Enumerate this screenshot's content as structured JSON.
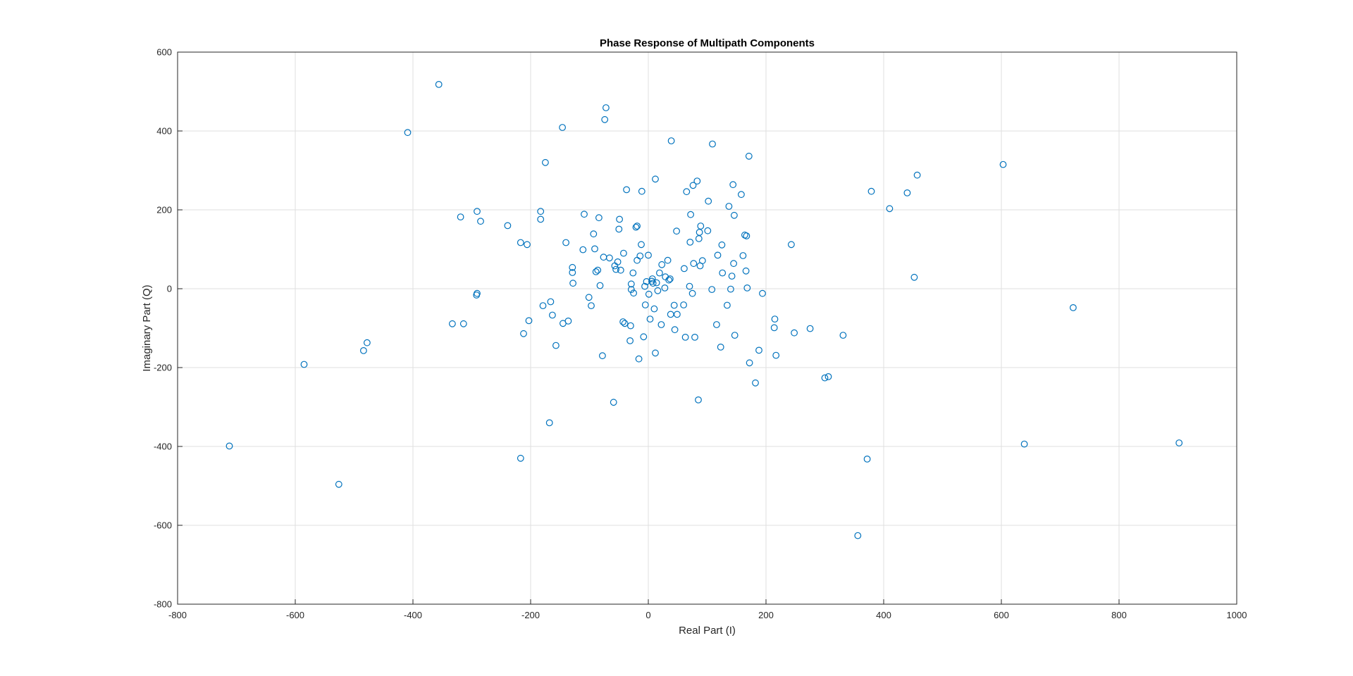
{
  "chart_data": {
    "type": "scatter",
    "title": "Phase Response of Multipath Components",
    "xlabel": "Real Part (I)",
    "ylabel": "Imaginary Part (Q)",
    "xlim": [
      -800,
      1000
    ],
    "ylim": [
      -800,
      600
    ],
    "xticks": [
      -800,
      -600,
      -400,
      -200,
      0,
      200,
      400,
      600,
      800,
      1000
    ],
    "yticks": [
      -800,
      -600,
      -400,
      -200,
      0,
      200,
      400,
      600
    ],
    "grid": true,
    "marker": "open-circle",
    "color": "#0072bd",
    "points": [
      [
        -712,
        -399
      ],
      [
        -585,
        -192
      ],
      [
        -526,
        -496
      ],
      [
        -484,
        -157
      ],
      [
        -478,
        -137
      ],
      [
        -409,
        396
      ],
      [
        -356,
        518
      ],
      [
        -333,
        -89
      ],
      [
        -319,
        182
      ],
      [
        -314,
        -89
      ],
      [
        -291,
        196
      ],
      [
        -291,
        -12
      ],
      [
        -292,
        -16
      ],
      [
        -285,
        171
      ],
      [
        -239,
        160
      ],
      [
        -217,
        117
      ],
      [
        -217,
        -430
      ],
      [
        -212,
        -114
      ],
      [
        -206,
        112
      ],
      [
        -203,
        -81
      ],
      [
        -183,
        196
      ],
      [
        -183,
        176
      ],
      [
        -179,
        -43
      ],
      [
        -175,
        320
      ],
      [
        -168,
        -340
      ],
      [
        -166,
        -33
      ],
      [
        -163,
        -67
      ],
      [
        -157,
        -144
      ],
      [
        -146,
        409
      ],
      [
        -145,
        -88
      ],
      [
        -140,
        117
      ],
      [
        -136,
        -82
      ],
      [
        -129,
        54
      ],
      [
        -129,
        41
      ],
      [
        -128,
        14
      ],
      [
        -111,
        99
      ],
      [
        -109,
        189
      ],
      [
        -101,
        -22
      ],
      [
        -97,
        -43
      ],
      [
        -93,
        139
      ],
      [
        -91,
        101
      ],
      [
        -89,
        43
      ],
      [
        -86,
        47
      ],
      [
        -84,
        180
      ],
      [
        -82,
        8
      ],
      [
        -78,
        -170
      ],
      [
        -76,
        80
      ],
      [
        -74,
        429
      ],
      [
        -72,
        459
      ],
      [
        -66,
        78
      ],
      [
        -59,
        -288
      ],
      [
        -57,
        58
      ],
      [
        -55,
        49
      ],
      [
        -52,
        68
      ],
      [
        -50,
        151
      ],
      [
        -49,
        176
      ],
      [
        -47,
        47
      ],
      [
        -43,
        -84
      ],
      [
        -42,
        90
      ],
      [
        -40,
        -88
      ],
      [
        -37,
        251
      ],
      [
        -31,
        -132
      ],
      [
        -30,
        -94
      ],
      [
        -29,
        12
      ],
      [
        -29,
        -2
      ],
      [
        -26,
        40
      ],
      [
        -25,
        -11
      ],
      [
        -21,
        156
      ],
      [
        -19,
        159
      ],
      [
        -19,
        72
      ],
      [
        -16,
        -178
      ],
      [
        -14,
        83
      ],
      [
        -12,
        112
      ],
      [
        -11,
        247
      ],
      [
        -8,
        -122
      ],
      [
        -6,
        6
      ],
      [
        -5,
        -41
      ],
      [
        -3,
        18
      ],
      [
        0,
        85
      ],
      [
        1,
        -14
      ],
      [
        3,
        -77
      ],
      [
        6,
        19
      ],
      [
        7,
        25
      ],
      [
        8,
        14
      ],
      [
        10,
        -51
      ],
      [
        12,
        278
      ],
      [
        12,
        -163
      ],
      [
        14,
        15
      ],
      [
        16,
        -5
      ],
      [
        19,
        40
      ],
      [
        22,
        -91
      ],
      [
        23,
        61
      ],
      [
        28,
        2
      ],
      [
        29,
        30
      ],
      [
        33,
        72
      ],
      [
        35,
        22
      ],
      [
        37,
        25
      ],
      [
        38,
        -65
      ],
      [
        39,
        375
      ],
      [
        44,
        -42
      ],
      [
        45,
        -104
      ],
      [
        48,
        146
      ],
      [
        49,
        -65
      ],
      [
        60,
        -41
      ],
      [
        61,
        51
      ],
      [
        63,
        -123
      ],
      [
        65,
        246
      ],
      [
        70,
        6
      ],
      [
        71,
        118
      ],
      [
        72,
        188
      ],
      [
        75,
        -12
      ],
      [
        76,
        262
      ],
      [
        77,
        64
      ],
      [
        79,
        -123
      ],
      [
        83,
        273
      ],
      [
        85,
        -282
      ],
      [
        86,
        127
      ],
      [
        87,
        143
      ],
      [
        88,
        58
      ],
      [
        89,
        159
      ],
      [
        92,
        71
      ],
      [
        101,
        147
      ],
      [
        102,
        222
      ],
      [
        108,
        -2
      ],
      [
        109,
        367
      ],
      [
        116,
        -91
      ],
      [
        118,
        85
      ],
      [
        123,
        -148
      ],
      [
        125,
        111
      ],
      [
        126,
        40
      ],
      [
        134,
        -42
      ],
      [
        137,
        209
      ],
      [
        140,
        -1
      ],
      [
        142,
        32
      ],
      [
        144,
        264
      ],
      [
        145,
        64
      ],
      [
        146,
        186
      ],
      [
        147,
        -118
      ],
      [
        158,
        239
      ],
      [
        161,
        84
      ],
      [
        164,
        136
      ],
      [
        166,
        45
      ],
      [
        167,
        134
      ],
      [
        168,
        2
      ],
      [
        171,
        336
      ],
      [
        172,
        -188
      ],
      [
        182,
        -239
      ],
      [
        188,
        -156
      ],
      [
        194,
        -12
      ],
      [
        214,
        -99
      ],
      [
        215,
        -77
      ],
      [
        217,
        -169
      ],
      [
        243,
        112
      ],
      [
        248,
        -112
      ],
      [
        275,
        -101
      ],
      [
        300,
        -226
      ],
      [
        306,
        -223
      ],
      [
        331,
        -118
      ],
      [
        356,
        -626
      ],
      [
        372,
        -432
      ],
      [
        379,
        247
      ],
      [
        440,
        243
      ],
      [
        410,
        203
      ],
      [
        452,
        29
      ],
      [
        457,
        288
      ],
      [
        603,
        315
      ],
      [
        639,
        -394
      ],
      [
        722,
        -48
      ],
      [
        902,
        -391
      ]
    ]
  }
}
